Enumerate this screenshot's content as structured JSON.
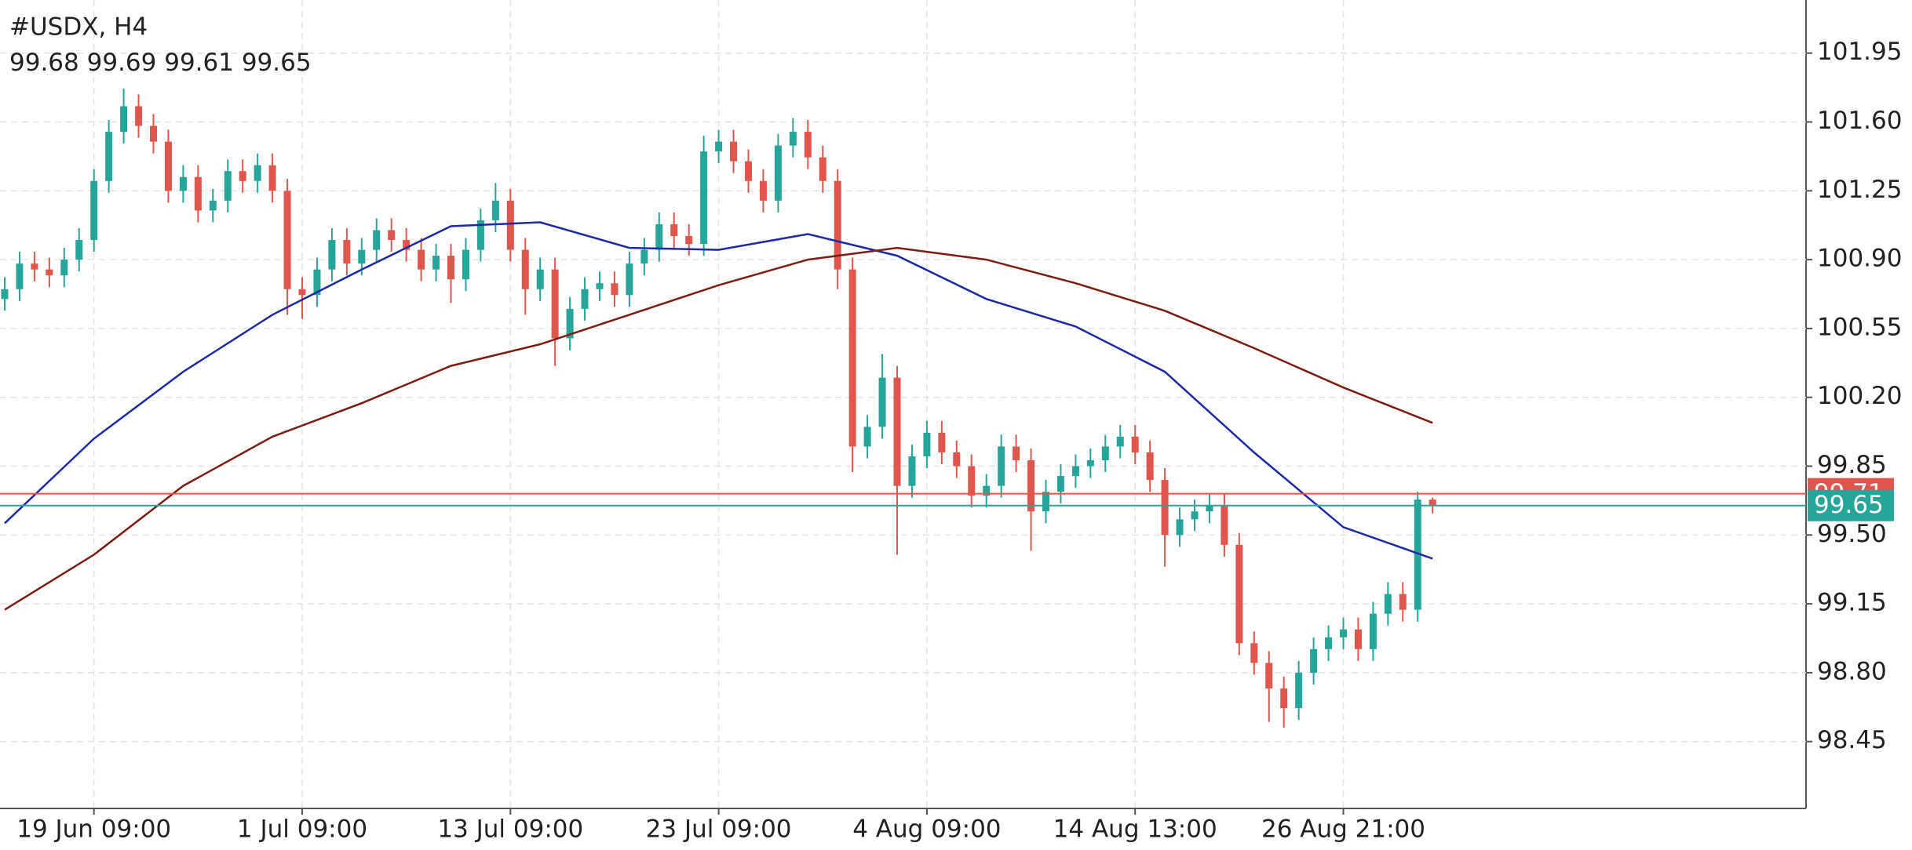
{
  "chart_data": {
    "type": "candlestick",
    "title": "#USDX, H4",
    "categories": [
      null,
      null,
      null,
      null,
      null,
      null,
      "19 Jun 09:00",
      null,
      null,
      null,
      null,
      null,
      null,
      null,
      null,
      null,
      null,
      null,
      null,
      null,
      "1 Jul 09:00",
      null,
      null,
      null,
      null,
      null,
      null,
      null,
      null,
      null,
      null,
      null,
      null,
      null,
      "13 Jul 09:00",
      null,
      null,
      null,
      null,
      null,
      null,
      null,
      null,
      null,
      null,
      null,
      null,
      null,
      "23 Jul 09:00",
      null,
      null,
      null,
      null,
      null,
      null,
      null,
      null,
      null,
      null,
      null,
      null,
      null,
      "4 Aug 09:00",
      null,
      null,
      null,
      null,
      null,
      null,
      null,
      null,
      null,
      null,
      null,
      null,
      null,
      "14 Aug 13:00",
      null,
      null,
      null,
      null,
      null,
      null,
      null,
      null,
      null,
      null,
      null,
      null,
      null,
      "26 Aug 21:00",
      null,
      null,
      null,
      null,
      null,
      null
    ],
    "open": [
      100.7,
      100.75,
      100.88,
      100.85,
      100.82,
      100.9,
      101.0,
      101.3,
      101.55,
      101.68,
      101.58,
      101.5,
      101.25,
      101.32,
      101.15,
      101.2,
      101.35,
      101.3,
      101.38,
      101.25,
      100.75,
      100.72,
      100.85,
      101.0,
      100.88,
      100.95,
      101.05,
      101.0,
      100.95,
      100.85,
      100.92,
      100.8,
      100.95,
      101.1,
      101.2,
      100.95,
      100.75,
      100.85,
      100.5,
      100.65,
      100.75,
      100.78,
      100.72,
      100.88,
      100.95,
      101.08,
      101.02,
      100.98,
      101.45,
      101.5,
      101.4,
      101.3,
      101.2,
      101.48,
      101.55,
      101.42,
      101.3,
      100.85,
      99.95,
      100.05,
      100.3,
      99.75,
      99.9,
      100.02,
      99.92,
      99.85,
      99.7,
      99.75,
      99.95,
      99.88,
      99.62,
      99.72,
      99.8,
      99.85,
      99.88,
      99.95,
      100.0,
      99.92,
      99.78,
      99.5,
      99.58,
      99.62,
      99.65,
      99.45,
      98.95,
      98.85,
      98.72,
      98.62,
      98.8,
      98.92,
      98.98,
      99.02,
      98.92,
      99.1,
      99.2,
      99.12,
      99.68
    ],
    "high": [
      100.81,
      100.94,
      100.94,
      100.91,
      100.96,
      101.06,
      101.36,
      101.61,
      101.77,
      101.74,
      101.64,
      101.56,
      101.38,
      101.38,
      101.26,
      101.41,
      101.41,
      101.44,
      101.44,
      101.31,
      100.81,
      100.91,
      101.06,
      101.06,
      101.01,
      101.11,
      101.11,
      101.06,
      101.01,
      100.98,
      100.98,
      101.01,
      101.16,
      101.29,
      101.26,
      101.01,
      100.91,
      100.91,
      100.71,
      100.81,
      100.84,
      100.84,
      100.94,
      101.01,
      101.14,
      101.14,
      101.08,
      101.53,
      101.56,
      101.56,
      101.46,
      101.36,
      101.54,
      101.62,
      101.61,
      101.48,
      101.36,
      100.91,
      100.11,
      100.42,
      100.36,
      99.96,
      100.08,
      100.08,
      99.98,
      99.91,
      99.81,
      100.01,
      100.01,
      99.94,
      99.78,
      99.86,
      99.91,
      99.94,
      100.01,
      100.06,
      100.06,
      99.98,
      99.84,
      99.64,
      99.68,
      99.71,
      99.71,
      99.51,
      99.01,
      98.91,
      98.78,
      98.86,
      98.98,
      99.04,
      99.08,
      99.08,
      99.16,
      99.26,
      99.26,
      99.72,
      99.69
    ],
    "low": [
      100.64,
      100.69,
      100.79,
      100.76,
      100.76,
      100.84,
      100.94,
      101.24,
      101.49,
      101.52,
      101.44,
      101.19,
      101.19,
      101.09,
      101.09,
      101.14,
      101.24,
      101.24,
      101.19,
      100.62,
      100.6,
      100.66,
      100.79,
      100.82,
      100.82,
      100.89,
      100.94,
      100.89,
      100.79,
      100.79,
      100.68,
      100.74,
      100.89,
      101.04,
      100.89,
      100.62,
      100.69,
      100.36,
      100.44,
      100.59,
      100.69,
      100.66,
      100.66,
      100.82,
      100.89,
      100.96,
      100.92,
      100.92,
      101.39,
      101.34,
      101.24,
      101.14,
      101.14,
      101.42,
      101.36,
      101.24,
      100.75,
      99.82,
      99.89,
      99.99,
      99.4,
      99.69,
      99.84,
      99.86,
      99.79,
      99.64,
      99.64,
      99.69,
      99.82,
      99.42,
      99.56,
      99.66,
      99.74,
      99.79,
      99.82,
      99.89,
      99.86,
      99.72,
      99.34,
      99.44,
      99.52,
      99.56,
      99.39,
      98.89,
      98.79,
      98.55,
      98.52,
      98.56,
      98.74,
      98.86,
      98.92,
      98.86,
      98.86,
      99.04,
      99.06,
      99.06,
      99.61
    ],
    "close": [
      100.75,
      100.88,
      100.85,
      100.82,
      100.9,
      101.0,
      101.3,
      101.55,
      101.68,
      101.58,
      101.5,
      101.25,
      101.32,
      101.15,
      101.2,
      101.35,
      101.3,
      101.38,
      101.25,
      100.75,
      100.72,
      100.85,
      101.0,
      100.88,
      100.95,
      101.05,
      101.0,
      100.95,
      100.85,
      100.92,
      100.8,
      100.95,
      101.1,
      101.2,
      100.95,
      100.75,
      100.85,
      100.5,
      100.65,
      100.75,
      100.78,
      100.72,
      100.88,
      100.95,
      101.08,
      101.02,
      100.98,
      101.45,
      101.5,
      101.4,
      101.3,
      101.2,
      101.48,
      101.55,
      101.42,
      101.3,
      100.85,
      99.95,
      100.05,
      100.3,
      99.75,
      99.9,
      100.02,
      99.92,
      99.85,
      99.7,
      99.75,
      99.95,
      99.88,
      99.62,
      99.72,
      99.8,
      99.85,
      99.88,
      99.95,
      100.0,
      99.92,
      99.78,
      99.5,
      99.58,
      99.62,
      99.65,
      99.45,
      98.95,
      98.85,
      98.72,
      98.62,
      98.8,
      98.92,
      98.98,
      99.02,
      98.92,
      99.1,
      99.2,
      99.12,
      99.68,
      99.65
    ],
    "up_color": "#26a69a",
    "down_color": "#e0564c",
    "series": [
      {
        "color": "#1c2aa6",
        "x": [
          0,
          6,
          12,
          18,
          24,
          30,
          36,
          42,
          48,
          54,
          60,
          66,
          72,
          78,
          84,
          90,
          96
        ],
        "values": [
          99.56,
          99.99,
          100.33,
          100.62,
          100.85,
          101.07,
          101.09,
          100.96,
          100.95,
          101.03,
          100.92,
          100.7,
          100.56,
          100.33,
          99.92,
          99.54,
          99.38
        ]
      },
      {
        "color": "#7a1d12",
        "x": [
          0,
          6,
          12,
          18,
          24,
          30,
          36,
          42,
          48,
          54,
          60,
          66,
          72,
          78,
          84,
          90,
          96
        ],
        "values": [
          99.12,
          99.4,
          99.75,
          100.0,
          100.17,
          100.36,
          100.47,
          100.62,
          100.77,
          100.9,
          100.96,
          100.9,
          100.78,
          100.64,
          100.45,
          100.25,
          100.07
        ]
      }
    ],
    "ask": 99.71,
    "ask_color": "#e0564c",
    "bid": 99.65,
    "bid_color": "#26a69a",
    "ylim": [
      98.11,
      102.22
    ],
    "yticks": [
      98.45,
      {
        "value": 98.8,
        "label": "98.80"
      },
      99.15,
      {
        "value": 99.5,
        "label": "99.50"
      },
      99.85,
      {
        "value": 100.2,
        "label": "100.20"
      },
      100.55,
      {
        "value": 100.9,
        "label": "100.90"
      },
      101.25,
      {
        "value": 101.6,
        "label": "101.60"
      },
      101.95
    ],
    "grid": true
  }
}
